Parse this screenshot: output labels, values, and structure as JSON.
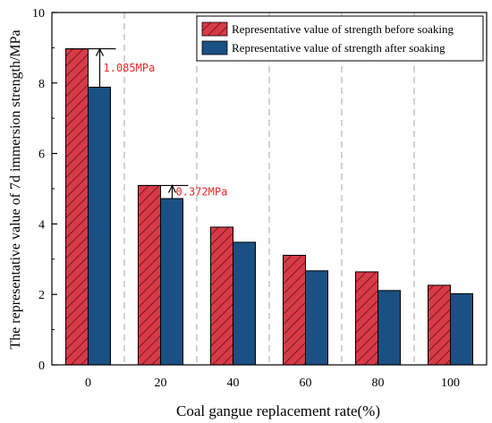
{
  "chart_data": {
    "type": "bar",
    "xlabel": "Coal gangue replacement rate(%)",
    "ylabel": "The representative value of 7d immersion strength/MPa",
    "categories": [
      "0",
      "20",
      "40",
      "60",
      "80",
      "100"
    ],
    "ylim": [
      0,
      10
    ],
    "yticks": [
      "0",
      "2",
      "4",
      "6",
      "8",
      "10"
    ],
    "grid": "dashed vertical separators between categories",
    "legend_placement": "top-right",
    "series": [
      {
        "name": "Representative value of strength before soaking",
        "values": [
          8.97,
          5.09,
          3.91,
          3.11,
          2.64,
          2.26
        ],
        "color": "#d93a48",
        "pattern": "diagonal-hatch"
      },
      {
        "name": "Representative value of strength after soaking",
        "values": [
          7.88,
          4.72,
          3.48,
          2.67,
          2.11,
          2.02
        ],
        "color": "#1a5083",
        "pattern": "solid"
      }
    ],
    "annotations": [
      {
        "text": "1.085MPa",
        "category": "0",
        "from": 7.88,
        "to": 8.97,
        "color": "#e8262a"
      },
      {
        "text": "0.372MPa",
        "category": "20",
        "from": 4.72,
        "to": 5.09,
        "color": "#e8262a"
      }
    ]
  }
}
